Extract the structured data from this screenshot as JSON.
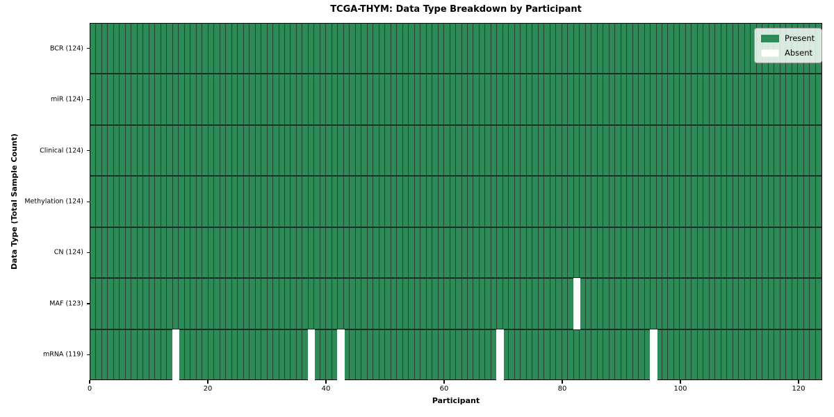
{
  "title": "TCGA-THYM: Data Type Breakdown by Participant",
  "xlabel": "Participant",
  "ylabel": "Data Type (Total Sample Count)",
  "legend": {
    "present_label": "Present",
    "absent_label": "Absent"
  },
  "colors": {
    "present": "#2e8b57",
    "absent": "#ffffff",
    "cell_edge": "#1f4431",
    "row_edge": "#143024",
    "spine": "#000000"
  },
  "chart_data": {
    "type": "heatmap",
    "title": "TCGA-THYM: Data Type Breakdown by Participant",
    "xlabel": "Participant",
    "ylabel": "Data Type (Total Sample Count)",
    "legend_entries": [
      "Present",
      "Absent"
    ],
    "legend_position": "upper right",
    "n_participants": 124,
    "xlim": [
      0,
      124
    ],
    "x_ticks": [
      0,
      20,
      40,
      60,
      80,
      100,
      120
    ],
    "rows": [
      {
        "label": "BCR (124)",
        "data_type": "BCR",
        "total": 124,
        "absent_participants": []
      },
      {
        "label": "miR (124)",
        "data_type": "miR",
        "total": 124,
        "absent_participants": []
      },
      {
        "label": "Clinical (124)",
        "data_type": "Clinical",
        "total": 124,
        "absent_participants": []
      },
      {
        "label": "Methylation (124)",
        "data_type": "Methylation",
        "total": 124,
        "absent_participants": []
      },
      {
        "label": "CN (124)",
        "data_type": "CN",
        "total": 124,
        "absent_participants": []
      },
      {
        "label": "MAF (123)",
        "data_type": "MAF",
        "total": 123,
        "absent_participants": [
          82
        ]
      },
      {
        "label": "mRNA (119)",
        "data_type": "mRNA",
        "total": 119,
        "absent_participants": [
          14,
          37,
          42,
          69,
          95
        ]
      }
    ]
  }
}
